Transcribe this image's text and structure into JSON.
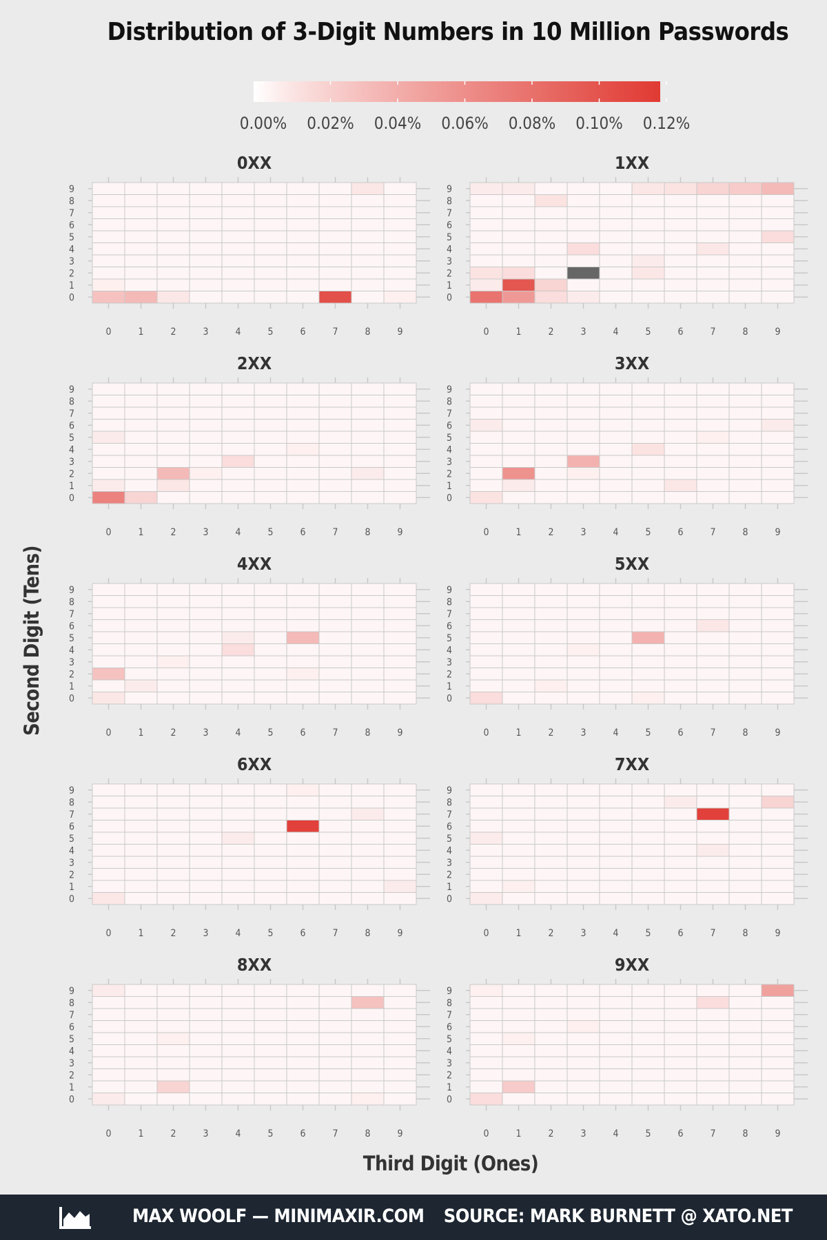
{
  "chart_data": {
    "type": "heatmap",
    "title": "Distribution of 3-Digit Numbers in 10 Million Passwords",
    "xlabel": "Third Digit (Ones)",
    "ylabel": "Second Digit (Tens)",
    "x_ticks": [
      "0",
      "1",
      "2",
      "3",
      "4",
      "5",
      "6",
      "7",
      "8",
      "9"
    ],
    "y_ticks": [
      "0",
      "1",
      "2",
      "3",
      "4",
      "5",
      "6",
      "7",
      "8",
      "9"
    ],
    "value_unit": "percent of passwords",
    "color_scale": {
      "low": "#ffffff",
      "high": "#e03a33",
      "out_of_range": "#666666",
      "limits": [
        0,
        0.12
      ],
      "ticks": [
        0,
        0.02,
        0.04,
        0.06,
        0.08,
        0.1,
        0.12
      ],
      "tick_labels": [
        "0.00%",
        "0.02%",
        "0.04%",
        "0.06%",
        "0.08%",
        "0.10%",
        "0.12%"
      ]
    },
    "panels": [
      {
        "label": "0XX",
        "highlights": [
          {
            "tens": 0,
            "ones": 7,
            "value": 0.105
          },
          {
            "tens": 0,
            "ones": 0,
            "value": 0.03
          },
          {
            "tens": 0,
            "ones": 1,
            "value": 0.035
          },
          {
            "tens": 0,
            "ones": 2,
            "value": 0.01
          },
          {
            "tens": 9,
            "ones": 8,
            "value": 0.01
          },
          {
            "tens": 0,
            "ones": 9,
            "value": 0.006
          },
          {
            "tens": 1,
            "ones": 0,
            "value": 0.006
          }
        ]
      },
      {
        "label": "1XX",
        "highlights": [
          {
            "tens": 2,
            "ones": 3,
            "value": 0.2
          },
          {
            "tens": 1,
            "ones": 1,
            "value": 0.1
          },
          {
            "tens": 0,
            "ones": 0,
            "value": 0.08
          },
          {
            "tens": 0,
            "ones": 1,
            "value": 0.055
          },
          {
            "tens": 1,
            "ones": 2,
            "value": 0.02
          },
          {
            "tens": 0,
            "ones": 2,
            "value": 0.015
          },
          {
            "tens": 9,
            "ones": 9,
            "value": 0.035
          },
          {
            "tens": 9,
            "ones": 8,
            "value": 0.025
          },
          {
            "tens": 9,
            "ones": 7,
            "value": 0.02
          },
          {
            "tens": 9,
            "ones": 6,
            "value": 0.012
          },
          {
            "tens": 9,
            "ones": 5,
            "value": 0.01
          },
          {
            "tens": 8,
            "ones": 2,
            "value": 0.012
          },
          {
            "tens": 4,
            "ones": 3,
            "value": 0.015
          },
          {
            "tens": 5,
            "ones": 9,
            "value": 0.015
          },
          {
            "tens": 4,
            "ones": 7,
            "value": 0.01
          },
          {
            "tens": 2,
            "ones": 1,
            "value": 0.015
          },
          {
            "tens": 2,
            "ones": 0,
            "value": 0.012
          },
          {
            "tens": 2,
            "ones": 5,
            "value": 0.01
          },
          {
            "tens": 3,
            "ones": 5,
            "value": 0.008
          },
          {
            "tens": 0,
            "ones": 3,
            "value": 0.008
          },
          {
            "tens": 1,
            "ones": 0,
            "value": 0.008
          },
          {
            "tens": 9,
            "ones": 0,
            "value": 0.008
          },
          {
            "tens": 9,
            "ones": 1,
            "value": 0.008
          }
        ]
      },
      {
        "label": "2XX",
        "highlights": [
          {
            "tens": 0,
            "ones": 0,
            "value": 0.07
          },
          {
            "tens": 2,
            "ones": 2,
            "value": 0.035
          },
          {
            "tens": 0,
            "ones": 1,
            "value": 0.02
          },
          {
            "tens": 3,
            "ones": 4,
            "value": 0.015
          },
          {
            "tens": 1,
            "ones": 2,
            "value": 0.01
          },
          {
            "tens": 2,
            "ones": 8,
            "value": 0.008
          },
          {
            "tens": 5,
            "ones": 0,
            "value": 0.008
          },
          {
            "tens": 1,
            "ones": 0,
            "value": 0.008
          },
          {
            "tens": 2,
            "ones": 3,
            "value": 0.006
          },
          {
            "tens": 4,
            "ones": 6,
            "value": 0.006
          }
        ]
      },
      {
        "label": "3XX",
        "highlights": [
          {
            "tens": 2,
            "ones": 1,
            "value": 0.06
          },
          {
            "tens": 3,
            "ones": 3,
            "value": 0.04
          },
          {
            "tens": 4,
            "ones": 5,
            "value": 0.012
          },
          {
            "tens": 0,
            "ones": 0,
            "value": 0.012
          },
          {
            "tens": 1,
            "ones": 6,
            "value": 0.01
          },
          {
            "tens": 1,
            "ones": 1,
            "value": 0.008
          },
          {
            "tens": 6,
            "ones": 0,
            "value": 0.008
          },
          {
            "tens": 6,
            "ones": 9,
            "value": 0.008
          },
          {
            "tens": 5,
            "ones": 7,
            "value": 0.006
          },
          {
            "tens": 2,
            "ones": 3,
            "value": 0.006
          }
        ]
      },
      {
        "label": "4XX",
        "highlights": [
          {
            "tens": 5,
            "ones": 6,
            "value": 0.035
          },
          {
            "tens": 2,
            "ones": 0,
            "value": 0.03
          },
          {
            "tens": 4,
            "ones": 4,
            "value": 0.015
          },
          {
            "tens": 0,
            "ones": 0,
            "value": 0.01
          },
          {
            "tens": 5,
            "ones": 4,
            "value": 0.008
          },
          {
            "tens": 1,
            "ones": 1,
            "value": 0.008
          },
          {
            "tens": 2,
            "ones": 6,
            "value": 0.006
          },
          {
            "tens": 3,
            "ones": 2,
            "value": 0.006
          }
        ]
      },
      {
        "label": "5XX",
        "highlights": [
          {
            "tens": 5,
            "ones": 5,
            "value": 0.04
          },
          {
            "tens": 0,
            "ones": 0,
            "value": 0.015
          },
          {
            "tens": 6,
            "ones": 7,
            "value": 0.01
          },
          {
            "tens": 1,
            "ones": 2,
            "value": 0.006
          },
          {
            "tens": 4,
            "ones": 3,
            "value": 0.006
          },
          {
            "tens": 0,
            "ones": 5,
            "value": 0.006
          }
        ]
      },
      {
        "label": "6XX",
        "highlights": [
          {
            "tens": 6,
            "ones": 6,
            "value": 0.115
          },
          {
            "tens": 0,
            "ones": 0,
            "value": 0.01
          },
          {
            "tens": 5,
            "ones": 4,
            "value": 0.008
          },
          {
            "tens": 7,
            "ones": 8,
            "value": 0.008
          },
          {
            "tens": 1,
            "ones": 9,
            "value": 0.008
          },
          {
            "tens": 9,
            "ones": 6,
            "value": 0.006
          }
        ]
      },
      {
        "label": "7XX",
        "highlights": [
          {
            "tens": 7,
            "ones": 7,
            "value": 0.115
          },
          {
            "tens": 8,
            "ones": 9,
            "value": 0.02
          },
          {
            "tens": 8,
            "ones": 6,
            "value": 0.008
          },
          {
            "tens": 5,
            "ones": 0,
            "value": 0.008
          },
          {
            "tens": 0,
            "ones": 0,
            "value": 0.008
          },
          {
            "tens": 4,
            "ones": 7,
            "value": 0.008
          },
          {
            "tens": 1,
            "ones": 1,
            "value": 0.006
          }
        ]
      },
      {
        "label": "8XX",
        "highlights": [
          {
            "tens": 8,
            "ones": 8,
            "value": 0.03
          },
          {
            "tens": 1,
            "ones": 2,
            "value": 0.02
          },
          {
            "tens": 9,
            "ones": 0,
            "value": 0.008
          },
          {
            "tens": 0,
            "ones": 0,
            "value": 0.008
          },
          {
            "tens": 5,
            "ones": 2,
            "value": 0.006
          },
          {
            "tens": 0,
            "ones": 8,
            "value": 0.006
          }
        ]
      },
      {
        "label": "9XX",
        "highlights": [
          {
            "tens": 9,
            "ones": 9,
            "value": 0.05
          },
          {
            "tens": 1,
            "ones": 1,
            "value": 0.025
          },
          {
            "tens": 8,
            "ones": 7,
            "value": 0.015
          },
          {
            "tens": 0,
            "ones": 0,
            "value": 0.015
          },
          {
            "tens": 5,
            "ones": 1,
            "value": 0.006
          },
          {
            "tens": 6,
            "ones": 3,
            "value": 0.006
          },
          {
            "tens": 9,
            "ones": 0,
            "value": 0.006
          }
        ]
      }
    ],
    "default_cell_value": 0.003
  },
  "footer": {
    "author": "MAX WOOLF — MINIMAXIR.COM",
    "source": "SOURCE: MARK BURNETT @ XATO.NET",
    "logo_icon": "area-chart-icon"
  },
  "colors": {
    "background": "#ebebeb",
    "footer_bg": "#1d2631",
    "grid_line": "#c8c8c8"
  }
}
